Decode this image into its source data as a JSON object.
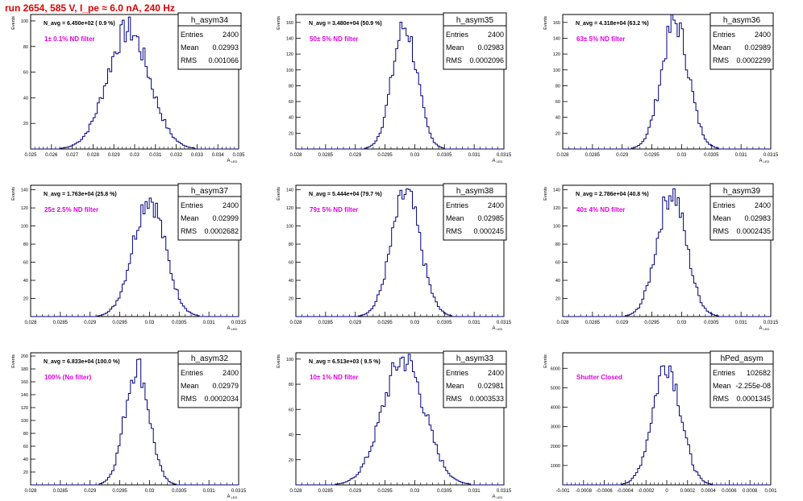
{
  "header": {
    "title": "run 2654,   585 V, I_pe ≈ 6.0 nA, 240 Hz"
  },
  "stats_labels": {
    "entries": "Entries",
    "mean": "Mean",
    "rms": "RMS"
  },
  "colors": {
    "histogram": "#00007f",
    "annotation": "#e000e0",
    "title": "#e00000",
    "frame": "#000000"
  },
  "chart_data": [
    {
      "type": "histogram",
      "name": "h_asym34",
      "title": "h_asym34",
      "entries": "2400",
      "mean": "0.02993",
      "rms": "0.001066",
      "navg": "N_avg = 6.450e+02 ( 0.9 %)",
      "filter": "1± 0.1% ND filter",
      "ylabel": "Events",
      "xlabel": "A_LED",
      "xlim": [
        0.025,
        0.0355
      ],
      "ylim": [
        0,
        105
      ],
      "xticks": [
        "0.025",
        "0.026",
        "0.027",
        "0.028",
        "0.029",
        "0.03",
        "0.031",
        "0.032",
        "0.033",
        "0.034",
        "0.035"
      ],
      "yticks": [
        20,
        40,
        60,
        80,
        100
      ],
      "center": 0.02993,
      "sigma": 0.001066,
      "peak": 93
    },
    {
      "type": "histogram",
      "name": "h_asym35",
      "title": "h_asym35",
      "entries": "2400",
      "mean": "0.02983",
      "rms": "0.0002096",
      "navg": "N_avg = 3.480e+04 (50.9 %)",
      "filter": "50± 5% ND filter",
      "ylabel": "Events",
      "xlabel": "A_LED",
      "xlim": [
        0.028,
        0.0315
      ],
      "ylim": [
        0,
        170
      ],
      "xticks": [
        "0.028",
        "0.0285",
        "0.029",
        "0.0295",
        "0.03",
        "0.0305",
        "0.031",
        "0.0315"
      ],
      "yticks": [
        20,
        40,
        60,
        80,
        100,
        120,
        140,
        160
      ],
      "center": 0.02983,
      "sigma": 0.0002096,
      "peak": 155
    },
    {
      "type": "histogram",
      "name": "h_asym36",
      "title": "h_asym36",
      "entries": "2400",
      "mean": "0.02989",
      "rms": "0.0002299",
      "navg": "N_avg = 4.318e+04 (63.2 %)",
      "filter": "63± 5% ND filter",
      "ylabel": "Events",
      "xlabel": "A_LED",
      "xlim": [
        0.028,
        0.0315
      ],
      "ylim": [
        0,
        170
      ],
      "xticks": [
        "0.028",
        "0.0285",
        "0.029",
        "0.0295",
        "0.03",
        "0.0305",
        "0.031",
        "0.0315"
      ],
      "yticks": [
        20,
        40,
        60,
        80,
        100,
        120,
        140,
        160
      ],
      "center": 0.02989,
      "sigma": 0.0002299,
      "peak": 160
    },
    {
      "type": "histogram",
      "name": "h_asym37",
      "title": "h_asym37",
      "entries": "2400",
      "mean": "0.02999",
      "rms": "0.0002682",
      "navg": "N_avg = 1.763e+04 (25.8 %)",
      "filter": "25± 2.5% ND filter",
      "ylabel": "Events",
      "xlabel": "A_LED",
      "xlim": [
        0.028,
        0.0315
      ],
      "ylim": [
        0,
        145
      ],
      "xticks": [
        "0.028",
        "0.0285",
        "0.029",
        "0.0295",
        "0.03",
        "0.0305",
        "0.031",
        "0.0315"
      ],
      "yticks": [
        20,
        40,
        60,
        80,
        100,
        120,
        140
      ],
      "center": 0.02999,
      "sigma": 0.0002682,
      "peak": 132
    },
    {
      "type": "histogram",
      "name": "h_asym38",
      "title": "h_asym38",
      "entries": "2400",
      "mean": "0.02985",
      "rms": "0.000245",
      "navg": "N_avg = 5.444e+04 (79.7 %)",
      "filter": "79± 5% ND filter",
      "ylabel": "Events",
      "xlabel": "A_LED",
      "xlim": [
        0.028,
        0.0315
      ],
      "ylim": [
        0,
        145
      ],
      "xticks": [
        "0.028",
        "0.0285",
        "0.029",
        "0.0295",
        "0.03",
        "0.0305",
        "0.031",
        "0.0315"
      ],
      "yticks": [
        20,
        40,
        60,
        80,
        100,
        120,
        140
      ],
      "center": 0.02985,
      "sigma": 0.000245,
      "peak": 135
    },
    {
      "type": "histogram",
      "name": "h_asym39",
      "title": "h_asym39",
      "entries": "2400",
      "mean": "0.02983",
      "rms": "0.0002435",
      "navg": "N_avg = 2.786e+04 (40.8 %)",
      "filter": "40± 4% ND filter",
      "ylabel": "Events",
      "xlabel": "A_LED",
      "xlim": [
        0.028,
        0.0315
      ],
      "ylim": [
        0,
        145
      ],
      "xticks": [
        "0.028",
        "0.0285",
        "0.029",
        "0.0295",
        "0.03",
        "0.0305",
        "0.031",
        "0.0315"
      ],
      "yticks": [
        20,
        40,
        60,
        80,
        100,
        120,
        140
      ],
      "center": 0.02983,
      "sigma": 0.0002435,
      "peak": 138
    },
    {
      "type": "histogram",
      "name": "h_asym32",
      "title": "h_asym32",
      "entries": "2400",
      "mean": "0.02979",
      "rms": "0.0002034",
      "navg": "N_avg = 6.833e+04 (100.0 %)",
      "filter": "100% (No filter)",
      "ylabel": "Events",
      "xlabel": "A_LED",
      "xlim": [
        0.028,
        0.0315
      ],
      "ylim": [
        0,
        205
      ],
      "xticks": [
        "0.028",
        "0.0285",
        "0.029",
        "0.0295",
        "0.03",
        "0.0305",
        "0.031",
        "0.0315"
      ],
      "yticks": [
        20,
        40,
        60,
        80,
        100,
        120,
        140,
        160,
        180,
        200
      ],
      "center": 0.02979,
      "sigma": 0.0002034,
      "peak": 185
    },
    {
      "type": "histogram",
      "name": "h_asym33",
      "title": "h_asym33",
      "entries": "2400",
      "mean": "0.02981",
      "rms": "0.0003533",
      "navg": "N_avg = 6.513e+03 ( 9.5 %)",
      "filter": "10± 1% ND filter",
      "ylabel": "Events",
      "xlabel": "A_LED",
      "xlim": [
        0.028,
        0.0315
      ],
      "ylim": [
        0,
        105
      ],
      "xticks": [
        "0.028",
        "0.0285",
        "0.029",
        "0.0295",
        "0.03",
        "0.0305",
        "0.031",
        "0.0315"
      ],
      "yticks": [
        20,
        40,
        60,
        80,
        100
      ],
      "center": 0.02981,
      "sigma": 0.0003533,
      "peak": 100
    },
    {
      "type": "histogram",
      "name": "hPed_asym",
      "title": "hPed_asym",
      "entries": "102682",
      "mean": "-2.255e-08",
      "rms": "0.0001345",
      "navg": "",
      "filter": "Shutter Closed",
      "ylabel": "Events",
      "xlabel": "",
      "xlim": [
        -0.001,
        0.001
      ],
      "ylim": [
        0,
        6800
      ],
      "xticks": [
        "-0.001",
        "-0.0008",
        "-0.0006",
        "-0.0004",
        "-0.0002",
        "0",
        "0.0002",
        "0.0004",
        "0.0006",
        "0.0008",
        "0.001"
      ],
      "yticks": [
        1000,
        2000,
        3000,
        4000,
        5000,
        6000
      ],
      "center": 0,
      "sigma": 0.0001345,
      "peak": 6300
    }
  ]
}
